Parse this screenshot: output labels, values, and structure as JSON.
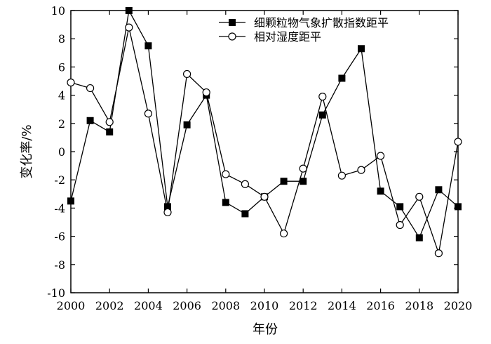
{
  "chart_data": {
    "type": "line",
    "xlabel": "年份",
    "ylabel": "变化率/%",
    "xlim": [
      2000,
      2020
    ],
    "ylim": [
      -10,
      10
    ],
    "x_ticks": [
      "2000",
      "2002",
      "2004",
      "2006",
      "2008",
      "2010",
      "2012",
      "2014",
      "2016",
      "2018",
      "2020"
    ],
    "y_ticks": [
      "10",
      "8",
      "6",
      "4",
      "2",
      "0",
      "-2",
      "-4",
      "-6",
      "-8",
      "-10"
    ],
    "grid": false,
    "legend_position": "top-right",
    "x": [
      2000,
      2001,
      2002,
      2003,
      2004,
      2005,
      2006,
      2007,
      2008,
      2009,
      2010,
      2011,
      2012,
      2013,
      2014,
      2015,
      2016,
      2017,
      2018,
      2019,
      2020
    ],
    "series": [
      {
        "name": "细颗粒物气象扩散指数距平",
        "marker": "filled-square",
        "values": [
          -3.5,
          2.2,
          1.4,
          10.0,
          7.5,
          -3.9,
          1.9,
          4.0,
          -3.6,
          -4.4,
          -3.2,
          -2.1,
          -2.1,
          2.6,
          5.2,
          7.3,
          -2.8,
          -3.9,
          -6.1,
          -2.7,
          -3.9
        ]
      },
      {
        "name": "相对湿度距平",
        "marker": "open-circle",
        "values": [
          4.9,
          4.5,
          2.1,
          8.8,
          2.7,
          -4.3,
          5.5,
          4.2,
          -1.6,
          -2.3,
          -3.2,
          -5.8,
          -1.2,
          3.9,
          -1.7,
          -1.3,
          -0.3,
          -5.2,
          -3.2,
          -7.2,
          0.7
        ]
      }
    ]
  }
}
